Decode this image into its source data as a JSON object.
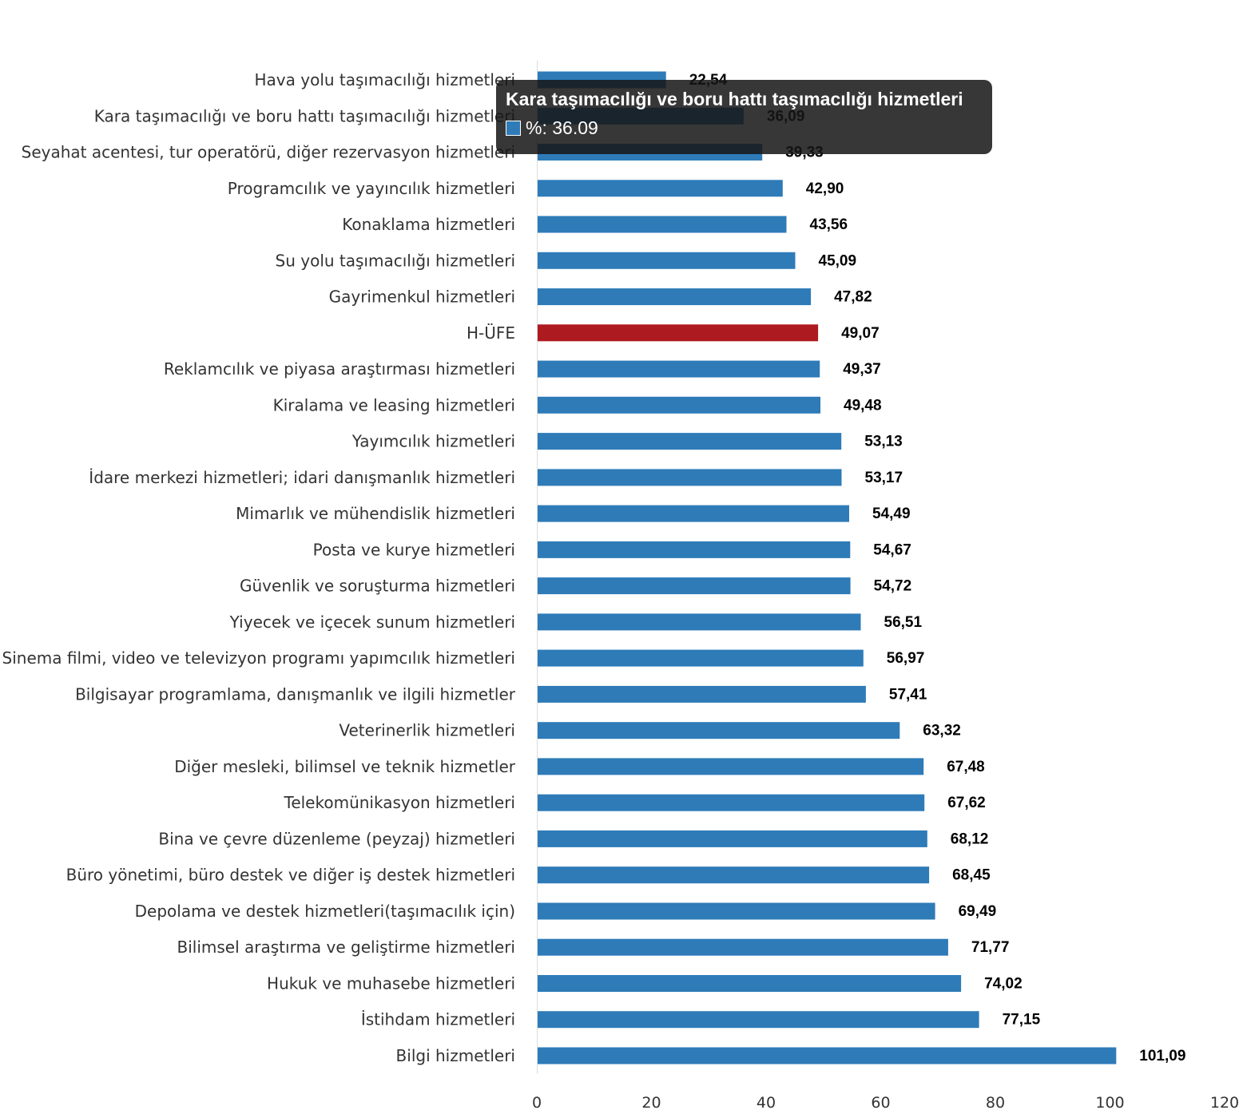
{
  "chart_data": {
    "type": "bar",
    "orientation": "horizontal",
    "title": "",
    "xlabel": "",
    "ylabel": "",
    "xlim": [
      0,
      120
    ],
    "x_ticks": [
      0,
      20,
      40,
      60,
      80,
      100,
      120
    ],
    "grid": false,
    "legend": "none",
    "colors": {
      "default": "#2e7bb8",
      "highlight": "#ad1a1f"
    },
    "categories": [
      "Hava yolu taşımacılığı hizmetleri",
      "Kara taşımacılığı ve boru hattı taşımacılığı hizmetleri",
      "Seyahat acentesi, tur operatörü, diğer rezervasyon hizmetleri",
      "Programcılık ve yayıncılık hizmetleri",
      "Konaklama hizmetleri",
      "Su yolu taşımacılığı hizmetleri",
      "Gayrimenkul hizmetleri",
      "H-ÜFE",
      "Reklamcılık ve piyasa araştırması hizmetleri",
      "Kiralama ve leasing hizmetleri",
      "Yayımcılık hizmetleri",
      "İdare merkezi hizmetleri; idari danışmanlık hizmetleri",
      "Mimarlık ve mühendislik hizmetleri",
      "Posta ve kurye hizmetleri",
      "Güvenlik ve soruşturma hizmetleri",
      "Yiyecek ve içecek sunum hizmetleri",
      "Sinema filmi, video ve televizyon programı yapımcılık hizmetleri",
      "Bilgisayar programlama, danışmanlık ve ilgili hizmetler",
      "Veterinerlik hizmetleri",
      "Diğer mesleki, bilimsel ve teknik hizmetler",
      "Telekomünikasyon hizmetleri",
      "Bina ve çevre düzenleme (peyzaj) hizmetleri",
      "Büro yönetimi, büro destek ve diğer iş destek hizmetleri",
      "Depolama ve destek hizmetleri(taşımacılık için)",
      "Bilimsel araştırma ve geliştirme hizmetleri",
      "Hukuk ve muhasebe hizmetleri",
      "İstihdam hizmetleri",
      "Bilgi hizmetleri"
    ],
    "values": [
      22.54,
      36.09,
      39.33,
      42.9,
      43.56,
      45.09,
      47.82,
      49.07,
      49.37,
      49.48,
      53.13,
      53.17,
      54.49,
      54.67,
      54.72,
      56.51,
      56.97,
      57.41,
      63.32,
      67.48,
      67.62,
      68.12,
      68.45,
      69.49,
      71.77,
      74.02,
      77.15,
      101.09
    ],
    "value_labels": [
      "22,54",
      "36,09",
      "39,33",
      "42,90",
      "43,56",
      "45,09",
      "47,82",
      "49,07",
      "49,37",
      "49,48",
      "53,13",
      "53,17",
      "54,49",
      "54,67",
      "54,72",
      "56,51",
      "56,97",
      "57,41",
      "63,32",
      "67,48",
      "67,62",
      "68,12",
      "68,45",
      "69,49",
      "71,77",
      "74,02",
      "77,15",
      "101,09"
    ],
    "highlight_category": "H-ÜFE"
  },
  "tooltip": {
    "title": "Kara taşımacılığı ve boru hattı taşımacılığı hizmetleri",
    "series_label": "%",
    "value": "36.09",
    "text": "%: 36.09",
    "active_index": 1
  }
}
